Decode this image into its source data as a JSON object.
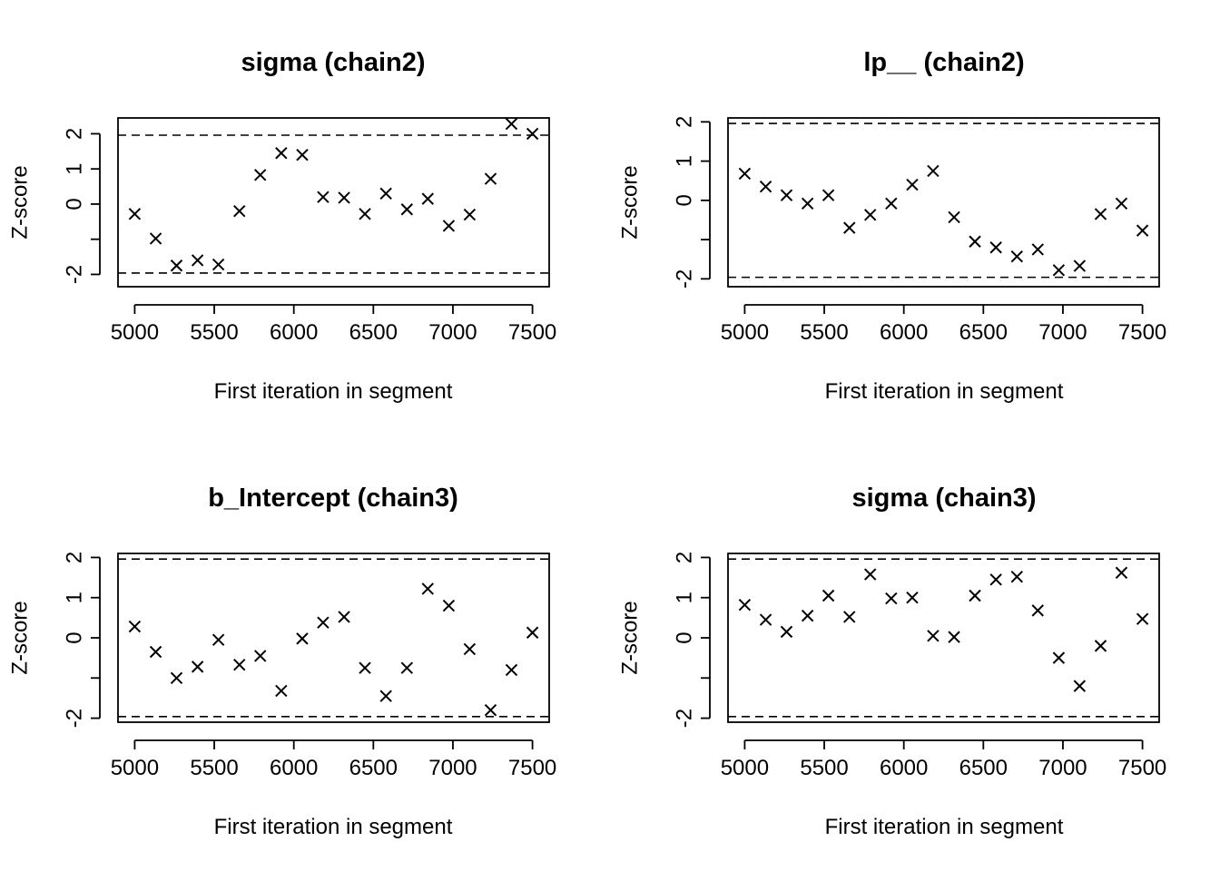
{
  "chart_data": [
    {
      "type": "scatter",
      "title": "sigma (chain2)",
      "xlabel": "First iteration in segment",
      "ylabel": "Z-score",
      "xlim": [
        4895,
        7605
      ],
      "ylim": [
        -2.35,
        2.45
      ],
      "xticks": [
        5000,
        5500,
        6000,
        6500,
        7000,
        7500
      ],
      "yticks": [
        -2,
        -1,
        0,
        1,
        2
      ],
      "ytick_labels": [
        "-2",
        "",
        "0",
        "1",
        "2"
      ],
      "reference_lines": [
        -1.96,
        1.96
      ],
      "series": [
        {
          "marker": "x",
          "x": [
            5000,
            5132,
            5263,
            5395,
            5526,
            5658,
            5789,
            5921,
            6053,
            6184,
            6316,
            6447,
            6579,
            6711,
            6842,
            6974,
            7105,
            7237,
            7368,
            7500
          ],
          "y": [
            -0.28,
            -0.98,
            -1.75,
            -1.6,
            -1.72,
            -0.2,
            0.83,
            1.45,
            1.4,
            0.2,
            0.18,
            -0.28,
            0.3,
            -0.15,
            0.15,
            -0.62,
            -0.3,
            0.72,
            2.28,
            2.0
          ]
        }
      ]
    },
    {
      "type": "scatter",
      "title": "lp__ (chain2)",
      "xlabel": "First iteration in segment",
      "ylabel": "Z-score",
      "xlim": [
        4895,
        7605
      ],
      "ylim": [
        -2.2,
        2.1
      ],
      "xticks": [
        5000,
        5500,
        6000,
        6500,
        7000,
        7500
      ],
      "yticks": [
        -2,
        -1,
        0,
        1,
        2
      ],
      "ytick_labels": [
        "-2",
        "",
        "0",
        "1",
        "2"
      ],
      "reference_lines": [
        -1.96,
        1.96
      ],
      "series": [
        {
          "marker": "x",
          "x": [
            5000,
            5132,
            5263,
            5395,
            5526,
            5658,
            5789,
            5921,
            6053,
            6184,
            6316,
            6447,
            6579,
            6711,
            6842,
            6974,
            7105,
            7237,
            7368,
            7500
          ],
          "y": [
            0.68,
            0.35,
            0.13,
            -0.08,
            0.13,
            -0.7,
            -0.37,
            -0.08,
            0.4,
            0.75,
            -0.43,
            -1.05,
            -1.2,
            -1.43,
            -1.25,
            -1.78,
            -1.67,
            -0.35,
            -0.08,
            -0.77
          ]
        }
      ]
    },
    {
      "type": "scatter",
      "title": "b_Intercept (chain3)",
      "xlabel": "First iteration in segment",
      "ylabel": "Z-score",
      "xlim": [
        4895,
        7605
      ],
      "ylim": [
        -2.1,
        2.1
      ],
      "xticks": [
        5000,
        5500,
        6000,
        6500,
        7000,
        7500
      ],
      "yticks": [
        -2,
        -1,
        0,
        1,
        2
      ],
      "ytick_labels": [
        "-2",
        "",
        "0",
        "1",
        "2"
      ],
      "reference_lines": [
        -1.96,
        1.96
      ],
      "series": [
        {
          "marker": "x",
          "x": [
            5000,
            5132,
            5263,
            5395,
            5526,
            5658,
            5789,
            5921,
            6053,
            6184,
            6316,
            6447,
            6579,
            6711,
            6842,
            6974,
            7105,
            7237,
            7368,
            7500
          ],
          "y": [
            0.28,
            -0.35,
            -1.0,
            -0.72,
            -0.05,
            -0.67,
            -0.45,
            -1.32,
            -0.02,
            0.38,
            0.52,
            -0.75,
            -1.45,
            -0.75,
            1.22,
            0.8,
            -0.28,
            -1.8,
            -0.8,
            0.13
          ]
        }
      ]
    },
    {
      "type": "scatter",
      "title": "sigma (chain3)",
      "xlabel": "First iteration in segment",
      "ylabel": "Z-score",
      "xlim": [
        4895,
        7605
      ],
      "ylim": [
        -2.1,
        2.1
      ],
      "xticks": [
        5000,
        5500,
        6000,
        6500,
        7000,
        7500
      ],
      "yticks": [
        -2,
        -1,
        0,
        1,
        2
      ],
      "ytick_labels": [
        "-2",
        "",
        "0",
        "1",
        "2"
      ],
      "reference_lines": [
        -1.96,
        1.96
      ],
      "series": [
        {
          "marker": "x",
          "x": [
            5000,
            5132,
            5263,
            5395,
            5526,
            5658,
            5789,
            5921,
            6053,
            6184,
            6316,
            6447,
            6579,
            6711,
            6842,
            6974,
            7105,
            7237,
            7368,
            7500
          ],
          "y": [
            0.82,
            0.45,
            0.15,
            0.55,
            1.05,
            0.52,
            1.58,
            0.98,
            1.0,
            0.05,
            0.02,
            1.05,
            1.45,
            1.52,
            0.68,
            -0.5,
            -1.2,
            -0.2,
            1.62,
            0.47
          ]
        }
      ]
    }
  ]
}
